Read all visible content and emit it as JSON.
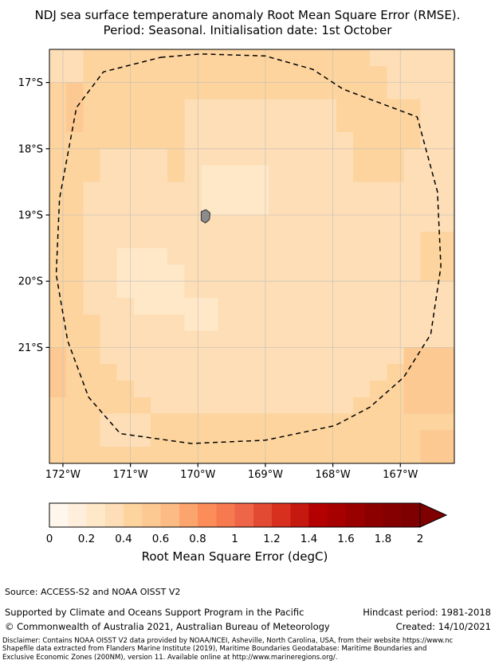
{
  "title": {
    "line1": "NDJ sea surface temperature anomaly Root Mean Square Error (RMSE).",
    "line2": "Period: Seasonal. Initialisation date: 1st October"
  },
  "chart_data": {
    "type": "heatmap",
    "title": "NDJ sea surface temperature anomaly Root Mean Square Error (RMSE). Period: Seasonal. Initialisation date: 1st October",
    "value_units": "degC",
    "lon_range": [
      -172.2,
      -166.2
    ],
    "lat_range": [
      -16.5,
      -22.75
    ],
    "cell_size_deg": 0.25,
    "grid_note": "rows top-to-bottom (16.5S to 22.75S), cols left-to-right (172.2W to 166.2W); digit = RMSE x 10",
    "grid_rows_x10": [
      "334444444444444444433333",
      "334444444444444444443333",
      "454444444444444444443333",
      "454444443333333334444433",
      "454444443333333334444433",
      "444444443333333333444433",
      "444333343333333333444333",
      "444333343222233333444333",
      "443333333222233333333333",
      "443333333222233333333333",
      "443333333333333333333333",
      "443333333333333333333344",
      "443322233333333333333344",
      "443322223333333333333344",
      "443322223333333333333333",
      "443332222233333333333333",
      "444333332233333333333333",
      "444333333333333333333333",
      "544333333333333333333555",
      "544433333333333333334555",
      "544443333333333333344555",
      "444444333333333333444555",
      "444333444444444444444444",
      "444333444444444444444455",
      "444444444444444444444455"
    ],
    "lat_ticks": [
      {
        "label": "17°S",
        "value": -17
      },
      {
        "label": "18°S",
        "value": -18
      },
      {
        "label": "19°S",
        "value": -19
      },
      {
        "label": "20°S",
        "value": -20
      },
      {
        "label": "21°S",
        "value": -21
      }
    ],
    "lon_ticks": [
      {
        "label": "172°W",
        "value": -172
      },
      {
        "label": "171°W",
        "value": -171
      },
      {
        "label": "170°W",
        "value": -170
      },
      {
        "label": "169°W",
        "value": -169
      },
      {
        "label": "168°W",
        "value": -168
      },
      {
        "label": "167°W",
        "value": -167
      }
    ],
    "eez_boundary_lonlat": [
      [
        -170.55,
        -16.62
      ],
      [
        -169.95,
        -16.57
      ],
      [
        -169.0,
        -16.6
      ],
      [
        -168.3,
        -16.8
      ],
      [
        -167.85,
        -17.1
      ],
      [
        -166.75,
        -17.52
      ],
      [
        -166.45,
        -18.65
      ],
      [
        -166.4,
        -19.78
      ],
      [
        -166.55,
        -20.8
      ],
      [
        -166.95,
        -21.45
      ],
      [
        -167.45,
        -21.9
      ],
      [
        -167.97,
        -22.18
      ],
      [
        -169.0,
        -22.4
      ],
      [
        -170.1,
        -22.45
      ],
      [
        -171.15,
        -22.3
      ],
      [
        -171.62,
        -21.75
      ],
      [
        -171.93,
        -20.9
      ],
      [
        -172.1,
        -19.9
      ],
      [
        -172.05,
        -18.75
      ],
      [
        -171.8,
        -17.38
      ],
      [
        -171.4,
        -16.84
      ]
    ],
    "island_niue_lonlat": [
      [
        -169.95,
        -18.95
      ],
      [
        -169.88,
        -18.92
      ],
      [
        -169.82,
        -18.97
      ],
      [
        -169.83,
        -19.07
      ],
      [
        -169.89,
        -19.12
      ],
      [
        -169.95,
        -19.08
      ]
    ],
    "island_color": "#8c8c8c",
    "grid_line_color": "#bbbbbb",
    "colorbar": {
      "label": "Root Mean Square Error (degC)",
      "range": [
        0,
        2
      ],
      "ticks": [
        {
          "label": "0",
          "value": 0
        },
        {
          "label": "0.2",
          "value": 0.2
        },
        {
          "label": "0.4",
          "value": 0.4
        },
        {
          "label": "0.6",
          "value": 0.6
        },
        {
          "label": "0.8",
          "value": 0.8
        },
        {
          "label": "1",
          "value": 1
        },
        {
          "label": "1.2",
          "value": 1.2
        },
        {
          "label": "1.4",
          "value": 1.4
        },
        {
          "label": "1.6",
          "value": 1.6
        },
        {
          "label": "1.8",
          "value": 1.8
        },
        {
          "label": "2",
          "value": 2
        }
      ],
      "segment_colors": [
        "#fff7ec",
        "#feefdc",
        "#fee8c8",
        "#fddeb6",
        "#fdd49e",
        "#fdc992",
        "#fdbb84",
        "#fca46e",
        "#fc8d59",
        "#f67950",
        "#ef6548",
        "#e34a33",
        "#d7301f",
        "#c5180f",
        "#b30000",
        "#a60000",
        "#990000",
        "#8c0000",
        "#850000",
        "#7f0000"
      ],
      "arrow_color": "#7f0000"
    }
  },
  "footer": {
    "source": "Source: ACCESS-S2 and NOAA OISST V2",
    "supported_by": "Supported by Climate and Oceans Support Program in the Pacific",
    "hindcast_period": "Hindcast period: 1981-2018",
    "copyright": "© Commonwealth of Australia 2021, Australian Bureau of Meteorology",
    "created": "Created: 14/10/2021"
  },
  "disclaimer": {
    "line1": "Disclaimer: Contains NOAA OISST V2 data provided by NOAA/NCEI, Asheville, North Carolina, USA, from their website https://www.nc",
    "line2": "Shapefile data extracted from Flanders Marine Institute (2019), Maritime Boundaries Geodatabase: Maritime Boundaries and",
    "line3": "Exclusive Economic Zones (200NM), version 11. Available online at http://www.marineregions.org/."
  }
}
